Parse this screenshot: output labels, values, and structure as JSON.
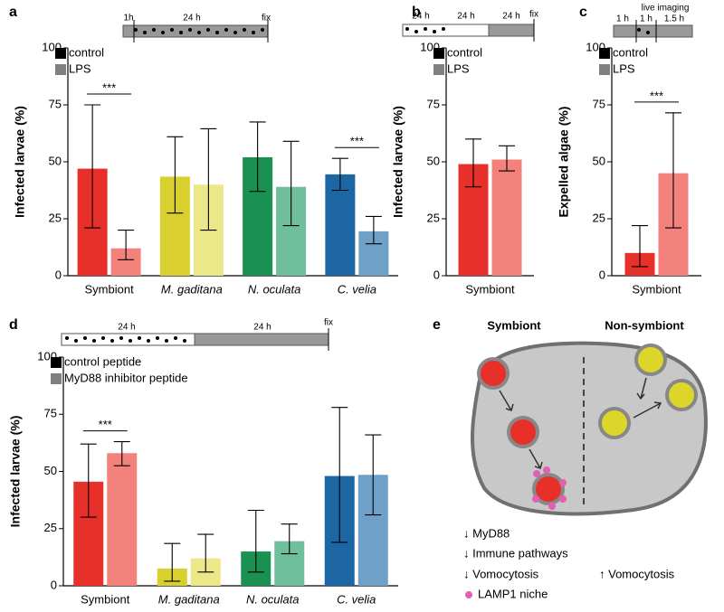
{
  "chart_data": [
    {
      "panel": "a",
      "type": "bar",
      "ylabel": "Infected larvae (%)",
      "categories": [
        "Symbiont",
        "M. gaditana",
        "N. oculata",
        "C. velia"
      ],
      "italic": [
        false,
        true,
        true,
        true
      ],
      "series": [
        {
          "name": "control",
          "color": "#000000",
          "bar_colors": [
            "#e8302a",
            "#d9cf2f",
            "#1a9150",
            "#1d66a4"
          ],
          "values": [
            47,
            43.5,
            52,
            44.5
          ],
          "err_low": [
            21,
            27.5,
            37,
            37.5
          ],
          "err_high": [
            75,
            61,
            67.5,
            51.5
          ]
        },
        {
          "name": "LPS",
          "color": "#808080",
          "bar_colors": [
            "#f4827c",
            "#ece88a",
            "#6fbf9c",
            "#6fa0c8"
          ],
          "values": [
            12,
            40,
            39,
            19.5
          ],
          "err_low": [
            7,
            20,
            22,
            14
          ],
          "err_high": [
            20,
            64.5,
            59,
            26
          ]
        }
      ],
      "ylim": [
        0,
        100
      ],
      "yticks": [
        0,
        25,
        50,
        75,
        100
      ],
      "significance": [
        {
          "label": "***",
          "category": 0
        },
        {
          "label": "***",
          "category": 3
        }
      ],
      "timeline": [
        "1h",
        "24 h",
        "fix"
      ]
    },
    {
      "panel": "b",
      "type": "bar",
      "ylabel": "Infected larvae (%)",
      "categories": [
        "Symbiont"
      ],
      "italic": [
        false
      ],
      "series": [
        {
          "name": "control",
          "color": "#000000",
          "bar_colors": [
            "#e8302a"
          ],
          "values": [
            49
          ],
          "err_low": [
            39
          ],
          "err_high": [
            60
          ]
        },
        {
          "name": "LPS",
          "color": "#808080",
          "bar_colors": [
            "#f4827c"
          ],
          "values": [
            51
          ],
          "err_low": [
            46
          ],
          "err_high": [
            57
          ]
        }
      ],
      "ylim": [
        0,
        100
      ],
      "yticks": [
        0,
        25,
        50,
        75,
        100
      ],
      "significance": [],
      "timeline": [
        "24 h",
        "24 h",
        "24 h",
        "fix"
      ]
    },
    {
      "panel": "c",
      "type": "bar",
      "ylabel": "Expelled algae (%)",
      "categories": [
        "Symbiont"
      ],
      "italic": [
        false
      ],
      "series": [
        {
          "name": "control",
          "color": "#000000",
          "bar_colors": [
            "#e8302a"
          ],
          "values": [
            10
          ],
          "err_low": [
            4
          ],
          "err_high": [
            22
          ]
        },
        {
          "name": "LPS",
          "color": "#808080",
          "bar_colors": [
            "#f4827c"
          ],
          "values": [
            45
          ],
          "err_low": [
            21
          ],
          "err_high": [
            71.5
          ]
        }
      ],
      "ylim": [
        0,
        100
      ],
      "yticks": [
        0,
        25,
        50,
        75,
        100
      ],
      "significance": [
        {
          "label": "***",
          "category": 0
        }
      ],
      "timeline": [
        "live imaging",
        "1 h",
        "1 h",
        "1.5 h"
      ]
    },
    {
      "panel": "d",
      "type": "bar",
      "ylabel": "Infected larvae (%)",
      "categories": [
        "Symbiont",
        "M. gaditana",
        "N. oculata",
        "C. velia"
      ],
      "italic": [
        false,
        true,
        true,
        true
      ],
      "series": [
        {
          "name": "control peptide",
          "color": "#000000",
          "bar_colors": [
            "#e8302a",
            "#d9cf2f",
            "#1a9150",
            "#1d66a4"
          ],
          "values": [
            45.5,
            7.5,
            15,
            48
          ],
          "err_low": [
            30,
            2,
            6,
            19
          ],
          "err_high": [
            62,
            18.5,
            33,
            78
          ]
        },
        {
          "name": "MyD88 inhibitor peptide",
          "color": "#808080",
          "bar_colors": [
            "#f4827c",
            "#ece88a",
            "#6fbf9c",
            "#6fa0c8"
          ],
          "values": [
            58,
            12,
            19.5,
            48.5
          ],
          "err_low": [
            52.5,
            6,
            14,
            31
          ],
          "err_high": [
            63,
            22.5,
            27,
            66
          ]
        }
      ],
      "ylim": [
        0,
        100
      ],
      "yticks": [
        0,
        25,
        50,
        75,
        100
      ],
      "significance": [
        {
          "label": "***",
          "category": 0
        }
      ],
      "timeline": [
        "24 h",
        "24 h",
        "fix"
      ]
    }
  ],
  "diagram": {
    "panel": "e",
    "headers": [
      "Symbiont",
      "Non-symbiont"
    ],
    "left_notes": [
      "↓ MyD88",
      "↓ Immune pathways",
      "↓ Vomocytosis"
    ],
    "legend": "LAMP1 niche",
    "right_notes": [
      "↑ Vomocytosis"
    ]
  }
}
